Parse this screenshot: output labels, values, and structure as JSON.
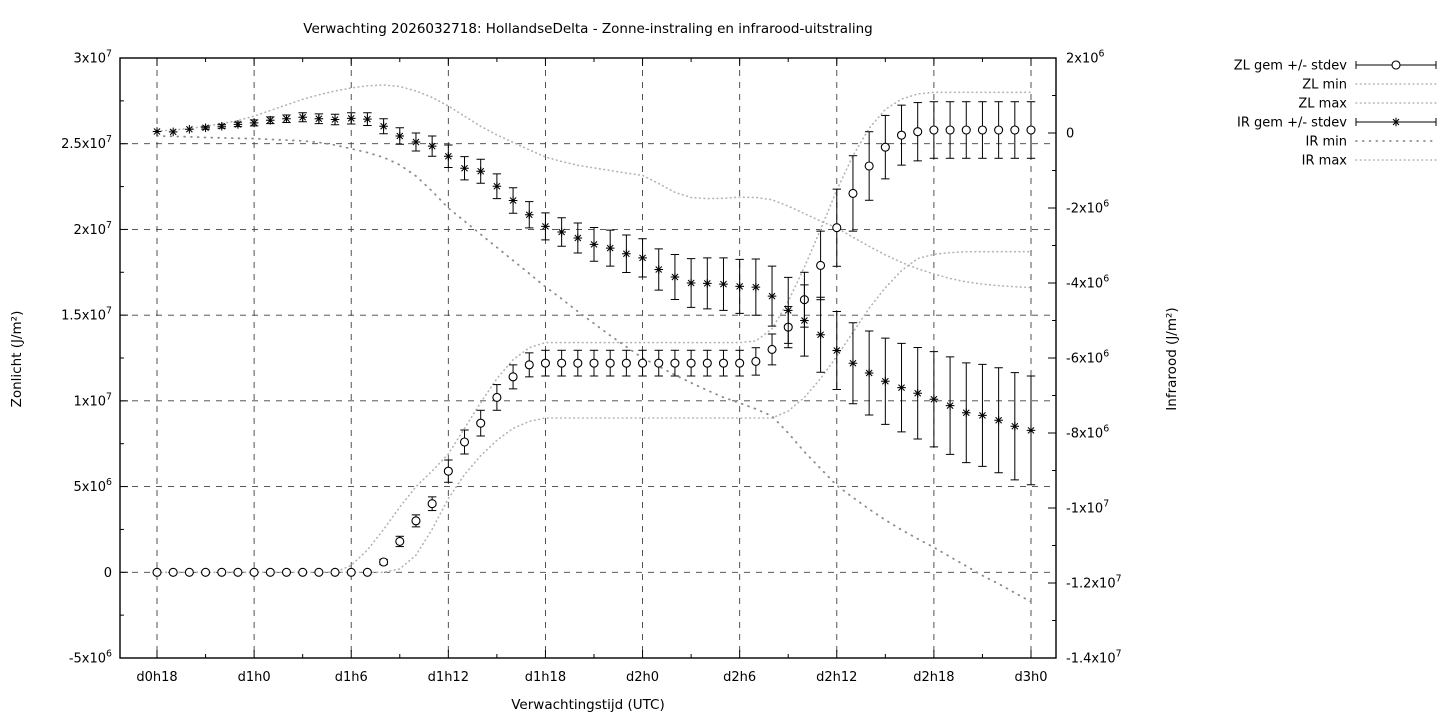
{
  "chart_data": {
    "type": "line",
    "title": "Verwachting 2026032718: HollandseDelta - Zonne-instraling en infrarood-uitstraling",
    "xlabel": "Verwachtingstijd (UTC)",
    "ylabel_left": "Zonlicht (J/m²)",
    "ylabel_right": "Infrarood (J/m²)",
    "grid": true,
    "legend_position": "outside-top-right",
    "values_scale_note": "all series values in 1e6 J/m2",
    "x_hours_start": 0,
    "x_hours_end": 54,
    "x_tick_hours": [
      0,
      6,
      12,
      18,
      24,
      30,
      36,
      42,
      48,
      54
    ],
    "x_tick_labels": [
      "d0h18",
      "d1h0",
      "d1h6",
      "d1h12",
      "d1h18",
      "d2h0",
      "d2h6",
      "d2h12",
      "d2h18",
      "d3h0"
    ],
    "y_left": {
      "min": -5,
      "max": 30,
      "minor_step": 2.5,
      "tick_values": [
        30,
        25,
        20,
        15,
        10,
        5,
        0,
        -5
      ],
      "tick_labels": [
        "3x10^7",
        "2.5x10^7",
        "2x10^7",
        "1.5x10^7",
        "1x10^7",
        "5x10^6",
        "0",
        "-5x10^6"
      ],
      "grid_values": [
        25,
        20,
        15,
        10,
        5,
        0
      ]
    },
    "y_right": {
      "min": -14,
      "max": 2,
      "minor_step": 1,
      "tick_values": [
        2,
        0,
        -2,
        -4,
        -6,
        -8,
        -10,
        -12,
        -14
      ],
      "tick_labels": [
        "2x10^6",
        "0",
        "-2x10^6",
        "-4x10^6",
        "-6x10^6",
        "-8x10^6",
        "-1x10^7",
        "-1.2x10^7",
        "-1.4x10^7"
      ]
    },
    "series": [
      {
        "name": "ZL gem +/- stdev",
        "axis": "left",
        "style": "errorbar-circle",
        "values": [
          0,
          0,
          0,
          0,
          0,
          0,
          0,
          0,
          0,
          0,
          0,
          0,
          0,
          0,
          0.6,
          1.8,
          3.0,
          4.0,
          5.9,
          7.6,
          8.7,
          10.2,
          11.4,
          12.1,
          12.2,
          12.2,
          12.2,
          12.2,
          12.2,
          12.2,
          12.2,
          12.2,
          12.2,
          12.2,
          12.2,
          12.2,
          12.2,
          12.3,
          13.0,
          14.3,
          15.9,
          17.9,
          20.1,
          22.1,
          23.7,
          24.8,
          25.5,
          25.7,
          25.8,
          25.8,
          25.8,
          25.8,
          25.8,
          25.8,
          25.8
        ],
        "stdev": [
          0,
          0,
          0,
          0,
          0,
          0,
          0,
          0,
          0,
          0,
          0,
          0,
          0,
          0,
          0.15,
          0.3,
          0.35,
          0.4,
          0.65,
          0.7,
          0.75,
          0.75,
          0.7,
          0.7,
          0.75,
          0.75,
          0.75,
          0.75,
          0.75,
          0.75,
          0.75,
          0.75,
          0.75,
          0.75,
          0.75,
          0.75,
          0.75,
          0.8,
          0.9,
          1.2,
          1.6,
          2.0,
          2.25,
          2.2,
          2.0,
          1.85,
          1.75,
          1.7,
          1.65,
          1.65,
          1.65,
          1.65,
          1.65,
          1.65,
          1.65
        ]
      },
      {
        "name": "ZL min",
        "axis": "left",
        "style": "dotted-fine",
        "values": [
          0,
          0,
          0,
          0,
          0,
          0,
          0,
          0,
          0,
          0,
          0,
          0,
          0,
          0,
          0,
          0.2,
          1.0,
          2.5,
          4.3,
          5.7,
          6.8,
          7.7,
          8.4,
          8.8,
          9.0,
          9.0,
          9.0,
          9.0,
          9.0,
          9.0,
          9.0,
          9.0,
          9.0,
          9.0,
          9.0,
          9.0,
          9.0,
          9.0,
          9.0,
          9.4,
          10.2,
          11.3,
          12.6,
          14.0,
          15.4,
          16.6,
          17.6,
          18.3,
          18.55,
          18.65,
          18.7,
          18.7,
          18.7,
          18.7,
          18.7
        ]
      },
      {
        "name": "ZL max",
        "axis": "left",
        "style": "dotted-fine",
        "values": [
          0,
          0,
          0,
          0,
          0,
          0,
          0,
          0,
          0,
          0,
          0,
          0,
          0.4,
          1.3,
          2.5,
          3.8,
          5.0,
          5.9,
          6.9,
          8.4,
          9.9,
          11.3,
          12.4,
          13.1,
          13.4,
          13.4,
          13.4,
          13.4,
          13.4,
          13.4,
          13.4,
          13.4,
          13.4,
          13.4,
          13.4,
          13.4,
          13.4,
          13.5,
          14.2,
          15.8,
          17.8,
          20.0,
          22.3,
          24.3,
          25.9,
          27.0,
          27.6,
          27.9,
          28.0,
          28.0,
          28.0,
          28.0,
          28.0,
          28.0,
          28.0
        ]
      },
      {
        "name": "IR gem +/- stdev",
        "axis": "right",
        "style": "errorbar-asterisk",
        "values": [
          0.04,
          0.03,
          0.1,
          0.14,
          0.18,
          0.23,
          0.27,
          0.34,
          0.38,
          0.42,
          0.38,
          0.36,
          0.39,
          0.37,
          0.18,
          -0.08,
          -0.24,
          -0.35,
          -0.62,
          -0.94,
          -1.02,
          -1.42,
          -1.8,
          -2.18,
          -2.49,
          -2.64,
          -2.8,
          -2.97,
          -3.07,
          -3.22,
          -3.33,
          -3.64,
          -3.84,
          -4.0,
          -4.01,
          -4.03,
          -4.09,
          -4.11,
          -4.35,
          -4.73,
          -5.0,
          -5.38,
          -5.8,
          -6.14,
          -6.4,
          -6.62,
          -6.79,
          -6.94,
          -7.1,
          -7.27,
          -7.46,
          -7.53,
          -7.66,
          -7.82,
          -7.93
        ],
        "stdev": [
          0.02,
          0.03,
          0.03,
          0.04,
          0.05,
          0.06,
          0.08,
          0.09,
          0.1,
          0.12,
          0.13,
          0.14,
          0.15,
          0.17,
          0.2,
          0.22,
          0.24,
          0.27,
          0.3,
          0.31,
          0.32,
          0.33,
          0.34,
          0.35,
          0.36,
          0.38,
          0.4,
          0.45,
          0.48,
          0.5,
          0.51,
          0.55,
          0.6,
          0.65,
          0.68,
          0.7,
          0.72,
          0.75,
          0.8,
          0.88,
          0.95,
          1.0,
          1.04,
          1.08,
          1.12,
          1.15,
          1.18,
          1.22,
          1.27,
          1.3,
          1.33,
          1.36,
          1.4,
          1.43,
          1.45
        ]
      },
      {
        "name": "IR min",
        "axis": "right",
        "style": "dotted-sparse",
        "values": [
          -0.08,
          -0.09,
          -0.1,
          -0.12,
          -0.13,
          -0.14,
          -0.15,
          -0.17,
          -0.19,
          -0.21,
          -0.25,
          -0.32,
          -0.42,
          -0.52,
          -0.65,
          -0.85,
          -1.15,
          -1.55,
          -2.0,
          -2.35,
          -2.7,
          -3.05,
          -3.4,
          -3.75,
          -4.1,
          -4.42,
          -4.76,
          -5.08,
          -5.4,
          -5.7,
          -6.0,
          -6.22,
          -6.45,
          -6.66,
          -6.86,
          -7.05,
          -7.2,
          -7.36,
          -7.55,
          -8.0,
          -8.5,
          -8.95,
          -9.4,
          -9.72,
          -10.03,
          -10.32,
          -10.58,
          -10.82,
          -11.05,
          -11.3,
          -11.55,
          -11.8,
          -12.02,
          -12.26,
          -12.5
        ]
      },
      {
        "name": "IR max",
        "axis": "right",
        "style": "dotted-fine",
        "values": [
          0.05,
          0.08,
          0.12,
          0.18,
          0.25,
          0.33,
          0.45,
          0.6,
          0.75,
          0.9,
          1.02,
          1.12,
          1.2,
          1.26,
          1.28,
          1.24,
          1.12,
          0.95,
          0.72,
          0.45,
          0.18,
          -0.05,
          -0.25,
          -0.45,
          -0.64,
          -0.76,
          -0.86,
          -0.93,
          -1.0,
          -1.07,
          -1.13,
          -1.35,
          -1.58,
          -1.72,
          -1.75,
          -1.74,
          -1.71,
          -1.72,
          -1.78,
          -1.95,
          -2.15,
          -2.35,
          -2.53,
          -2.78,
          -3.02,
          -3.25,
          -3.45,
          -3.62,
          -3.76,
          -3.88,
          -3.97,
          -4.03,
          -4.07,
          -4.1,
          -4.12
        ]
      }
    ],
    "colors": {
      "foreground": "#000000",
      "grid": "#404040",
      "minmax_dotted": "#b2b2b2",
      "ir_min_dotted": "#8c8c8c",
      "background": "#ffffff"
    }
  }
}
